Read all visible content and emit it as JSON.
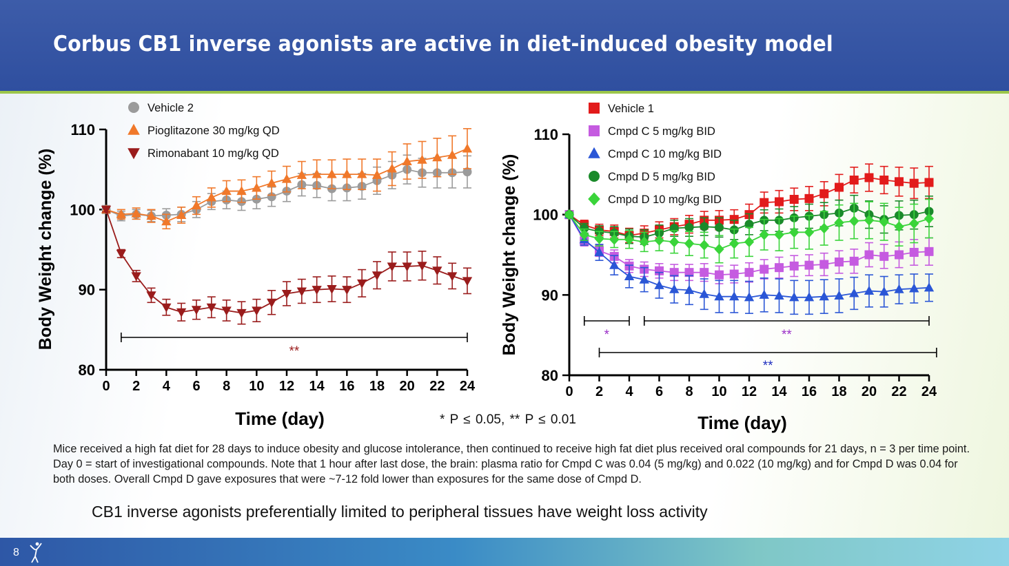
{
  "slide": {
    "title": "Corbus CB1 inverse agonists are active in diet-induced obesity model",
    "pvalue_note": "* P ≤ 0.05,  ** P ≤ 0.01",
    "caption": "Mice received a high fat diet for 28 days to induce obesity and glucose intolerance, then continued to receive high fat diet plus received oral compounds for 21 days, n = 3 per time point.  Day 0 = start of investigational compounds.  Note that 1 hour after last dose, the brain: plasma ratio for Cmpd C was 0.04 (5 mg/kg) and 0.022 (10 mg/kg) and for Cmpd D was 0.04 for both doses.  Overall Cmpd D gave exposures that were ~7-12 fold lower than exposures for the same dose of Cmpd D.",
    "takeaway": "CB1 inverse agonists preferentially limited to peripheral tissues have weight loss activity",
    "page_number": "8",
    "logo_icon": "corbus-figure-icon"
  },
  "chart_data": [
    {
      "type": "line",
      "xlabel": "Time (day)",
      "ylabel": "Body Weight change (%)",
      "xlim": [
        0,
        24
      ],
      "ylim": [
        80,
        110
      ],
      "xticks": [
        "0",
        "2",
        "4",
        "6",
        "8",
        "10",
        "12",
        "14",
        "16",
        "18",
        "20",
        "22",
        "24"
      ],
      "yticks": [
        "80",
        "90",
        "100",
        "110"
      ],
      "legend_position": "top-left",
      "series": [
        {
          "name": "Vehicle 2",
          "color": "#9b9b9b",
          "marker": "circle",
          "x": [
            0,
            1,
            2,
            3,
            4,
            5,
            6,
            7,
            8,
            9,
            10,
            11,
            12,
            13,
            14,
            15,
            16,
            17,
            18,
            19,
            20,
            21,
            22,
            23,
            24
          ],
          "values": [
            100,
            99.2,
            99.4,
            99.2,
            99.3,
            99.4,
            100,
            101,
            101.2,
            101,
            101.3,
            101.6,
            102.3,
            103.1,
            103,
            102.6,
            102.7,
            102.9,
            103.6,
            104.3,
            105,
            104.6,
            104.6,
            104.6,
            104.7
          ],
          "err": [
            0.5,
            0.6,
            0.6,
            0.7,
            0.8,
            0.9,
            1,
            1,
            1.1,
            1.1,
            1.2,
            1.2,
            1.3,
            1.4,
            1.5,
            1.5,
            1.6,
            1.6,
            1.7,
            1.7,
            1.8,
            1.8,
            1.9,
            1.9,
            2
          ]
        },
        {
          "name": "Pioglitazone 30 mg/kg QD",
          "color": "#f0782a",
          "marker": "triangle-up",
          "x": [
            0,
            1,
            2,
            3,
            4,
            5,
            6,
            7,
            8,
            9,
            10,
            11,
            12,
            13,
            14,
            15,
            16,
            17,
            18,
            19,
            20,
            21,
            22,
            23,
            24
          ],
          "values": [
            100,
            99.4,
            99.5,
            99.2,
            98.5,
            99.3,
            100.5,
            101.5,
            102.3,
            102.3,
            102.7,
            103.3,
            103.8,
            104.3,
            104.4,
            104.4,
            104.4,
            104.4,
            104.3,
            105.1,
            106,
            106.2,
            106.5,
            106.8,
            107.6
          ],
          "err": [
            0.4,
            0.6,
            0.7,
            0.8,
            0.9,
            1,
            1.1,
            1.2,
            1.3,
            1.4,
            1.4,
            1.5,
            1.6,
            1.7,
            1.8,
            1.8,
            1.9,
            1.9,
            2,
            2.1,
            2.2,
            2.3,
            2.4,
            2.4,
            2.5
          ]
        },
        {
          "name": "Rimonabant 10 mg/kg QD",
          "color": "#9a1c1c",
          "marker": "triangle-down",
          "x": [
            0,
            1,
            2,
            3,
            4,
            5,
            6,
            7,
            8,
            9,
            10,
            11,
            12,
            13,
            14,
            15,
            16,
            17,
            18,
            19,
            20,
            21,
            22,
            23,
            24
          ],
          "values": [
            100,
            94.5,
            91.7,
            89.3,
            87.8,
            87.2,
            87.5,
            87.8,
            87.4,
            87.1,
            87.4,
            88.4,
            89.5,
            89.8,
            90,
            90.1,
            90,
            90.8,
            91.8,
            92.9,
            92.9,
            93,
            92.4,
            91.7,
            91.1
          ],
          "err": [
            0.3,
            0.5,
            0.7,
            0.9,
            1,
            1.1,
            1.2,
            1.3,
            1.3,
            1.4,
            1.4,
            1.5,
            1.5,
            1.5,
            1.6,
            1.6,
            1.6,
            1.7,
            1.7,
            1.8,
            1.8,
            1.8,
            1.7,
            1.6,
            1.6
          ]
        }
      ],
      "significance": [
        {
          "label": "**",
          "x_from": 1,
          "x_to": 24,
          "color": "#9a1c1c"
        }
      ]
    },
    {
      "type": "line",
      "xlabel": "Time (day)",
      "ylabel": "Body Weight change (%)",
      "xlim": [
        0,
        24
      ],
      "ylim": [
        80,
        110
      ],
      "xticks": [
        "0",
        "2",
        "4",
        "6",
        "8",
        "10",
        "12",
        "14",
        "16",
        "18",
        "20",
        "22",
        "24"
      ],
      "yticks": [
        "80",
        "90",
        "100",
        "110"
      ],
      "legend_position": "top-left",
      "series": [
        {
          "name": "Vehicle 1",
          "color": "#e21b1b",
          "marker": "square",
          "x": [
            0,
            1,
            2,
            3,
            4,
            5,
            6,
            7,
            8,
            9,
            10,
            11,
            12,
            13,
            14,
            15,
            16,
            17,
            18,
            19,
            20,
            21,
            22,
            23,
            24
          ],
          "values": [
            100,
            98.7,
            98.1,
            97.9,
            97.4,
            97.7,
            98.1,
            98.5,
            98.8,
            99.3,
            99.3,
            99.4,
            100,
            101.5,
            101.6,
            101.9,
            102,
            102.6,
            103.4,
            104.3,
            104.6,
            104.3,
            104.1,
            103.9,
            104
          ],
          "err": [
            0.3,
            0.6,
            0.7,
            0.8,
            0.9,
            0.9,
            1,
            1,
            1.1,
            1.1,
            1.2,
            1.2,
            1.3,
            1.3,
            1.4,
            1.4,
            1.5,
            1.5,
            1.6,
            1.6,
            1.7,
            1.7,
            1.8,
            1.9,
            2
          ]
        },
        {
          "name": "Cmpd C 5 mg/kg BID",
          "color": "#c55be0",
          "marker": "square",
          "x": [
            0,
            1,
            2,
            3,
            4,
            5,
            6,
            7,
            8,
            9,
            10,
            11,
            12,
            13,
            14,
            15,
            16,
            17,
            18,
            19,
            20,
            21,
            22,
            23,
            24
          ],
          "values": [
            100,
            96.7,
            95.5,
            94.8,
            93.6,
            93.2,
            93,
            92.8,
            92.8,
            92.8,
            92.5,
            92.6,
            92.8,
            93.2,
            93.4,
            93.6,
            93.7,
            93.8,
            94.1,
            94.2,
            95,
            94.8,
            95,
            95.3,
            95.4
          ],
          "err": [
            0.3,
            0.6,
            0.7,
            0.8,
            0.8,
            0.9,
            0.9,
            1,
            1,
            1.1,
            1.1,
            1.1,
            1.2,
            1.2,
            1.3,
            1.3,
            1.3,
            1.4,
            1.4,
            1.5,
            1.5,
            1.5,
            1.6,
            1.6,
            1.7
          ]
        },
        {
          "name": "Cmpd C 10 mg/kg BID",
          "color": "#2a56d6",
          "marker": "triangle-up",
          "x": [
            0,
            1,
            2,
            3,
            4,
            5,
            6,
            7,
            8,
            9,
            10,
            11,
            12,
            13,
            14,
            15,
            16,
            17,
            18,
            19,
            20,
            21,
            22,
            23,
            24
          ],
          "values": [
            100,
            96.9,
            95.3,
            93.7,
            92.3,
            91.9,
            91.2,
            90.7,
            90.6,
            90.1,
            89.8,
            89.8,
            89.7,
            90,
            89.9,
            89.7,
            89.7,
            89.8,
            89.9,
            90.2,
            90.5,
            90.4,
            90.7,
            90.8,
            90.9
          ],
          "err": [
            0.3,
            0.7,
            1,
            1.2,
            1.4,
            1.5,
            1.6,
            1.7,
            1.8,
            1.9,
            2,
            2,
            2,
            2.1,
            2.1,
            2.1,
            2.1,
            2.1,
            2.1,
            2,
            2,
            1.9,
            1.8,
            1.8,
            1.7
          ]
        },
        {
          "name": "Cmpd D 5 mg/kg BID",
          "color": "#1a8a2a",
          "marker": "circle",
          "x": [
            0,
            1,
            2,
            3,
            4,
            5,
            6,
            7,
            8,
            9,
            10,
            11,
            12,
            13,
            14,
            15,
            16,
            17,
            18,
            19,
            20,
            21,
            22,
            23,
            24
          ],
          "values": [
            100,
            98.3,
            97.9,
            97.7,
            97.3,
            97.2,
            97.7,
            98.3,
            98.4,
            98.5,
            98.4,
            98.1,
            98.8,
            99.3,
            99.3,
            99.6,
            99.8,
            100,
            100.2,
            100.8,
            100,
            99.4,
            99.9,
            100,
            100.4
          ],
          "err": [
            0.3,
            0.6,
            0.7,
            0.8,
            0.9,
            0.9,
            1,
            1,
            1.1,
            1.1,
            1.2,
            1.2,
            1.3,
            1.3,
            1.4,
            1.4,
            1.5,
            1.5,
            1.6,
            1.6,
            1.7,
            1.7,
            1.8,
            1.8,
            1.9
          ]
        },
        {
          "name": "Cmpd D 10 mg/kg BID",
          "color": "#3ad43a",
          "marker": "diamond",
          "x": [
            0,
            1,
            2,
            3,
            4,
            5,
            6,
            7,
            8,
            9,
            10,
            11,
            12,
            13,
            14,
            15,
            16,
            17,
            18,
            19,
            20,
            21,
            22,
            23,
            24
          ],
          "values": [
            100,
            97.5,
            97,
            96.9,
            96.9,
            96.6,
            96.8,
            96.6,
            96.4,
            96.2,
            95.7,
            96.4,
            96.6,
            97.5,
            97.5,
            97.8,
            97.8,
            98.3,
            99,
            99.2,
            99.3,
            99.1,
            98.5,
            98.9,
            99.5
          ],
          "err": [
            0.3,
            0.7,
            0.9,
            1,
            1.1,
            1.2,
            1.3,
            1.4,
            1.5,
            1.6,
            1.7,
            1.8,
            1.8,
            1.9,
            2,
            2,
            2.1,
            2.1,
            2.2,
            2.2,
            2.3,
            2.3,
            2.4,
            2.4,
            2.4
          ]
        }
      ],
      "significance": [
        {
          "label": "*",
          "x_from": 1,
          "x_to": 4,
          "color": "#9b30c8"
        },
        {
          "label": "**",
          "x_from": 5,
          "x_to": 24,
          "color": "#9b30c8"
        },
        {
          "label": "**",
          "x_from": 2,
          "x_to": 24.5,
          "color": "#1f2fbf"
        }
      ]
    }
  ]
}
